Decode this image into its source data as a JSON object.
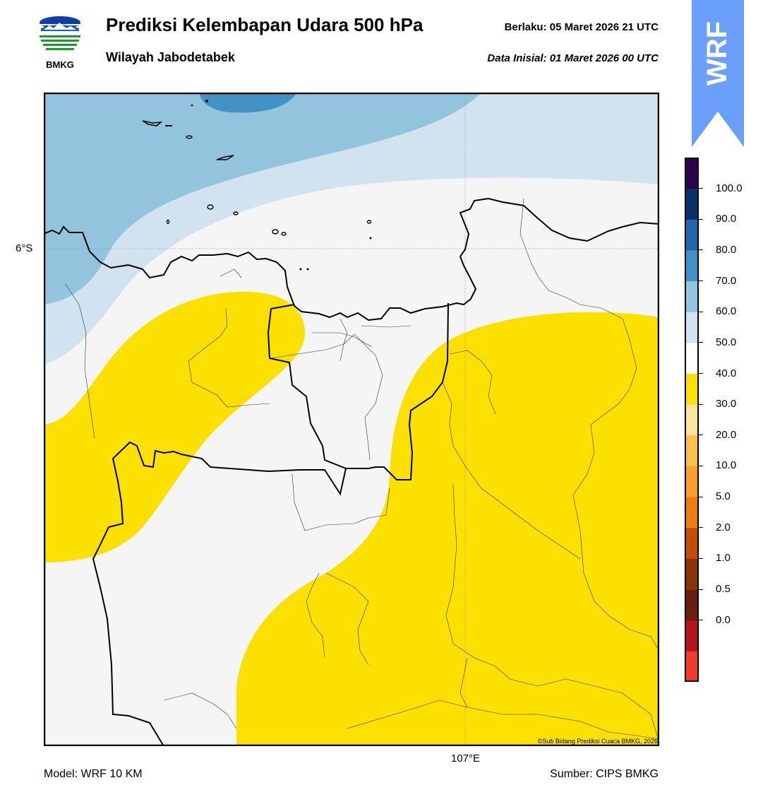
{
  "header": {
    "title": "Prediksi Kelembapan Udara 500 hPa",
    "subtitle": "Wilayah Jabodetabek",
    "valid_label": "Berlaku:  05 Maret 2026 21 UTC",
    "init_label": "Data Inisial:  01 Maret 2026 00 UTC",
    "logo_text": "BMKG",
    "model_badge": "WRF"
  },
  "map": {
    "lat_label": "6°S",
    "lon_label": "107°E",
    "copyright": "©Sub Bidang Prediksi Cuaca BMKG, 2026"
  },
  "colorbar": {
    "labels": [
      "100.0",
      "90.0",
      "80.0",
      "70.0",
      "60.0",
      "50.0",
      "40.0",
      "30.0",
      "20.0",
      "10.0",
      "5.0",
      "2.0",
      "1.0",
      "0.5",
      "0.0"
    ],
    "colors": [
      "#f03c2c",
      "#b31419",
      "#671f0f",
      "#8a3506",
      "#c54e05",
      "#f07b10",
      "#fd9e2f",
      "#fec04d",
      "#fee39f",
      "#fce000",
      "#ffffff",
      "#d1e3ef",
      "#92c4de",
      "#4292c6",
      "#2166ac",
      "#08306b",
      "#2d004b"
    ]
  },
  "footer": {
    "model": "Model: WRF 10 KM",
    "source": "Sumber: CIPS BMKG"
  }
}
